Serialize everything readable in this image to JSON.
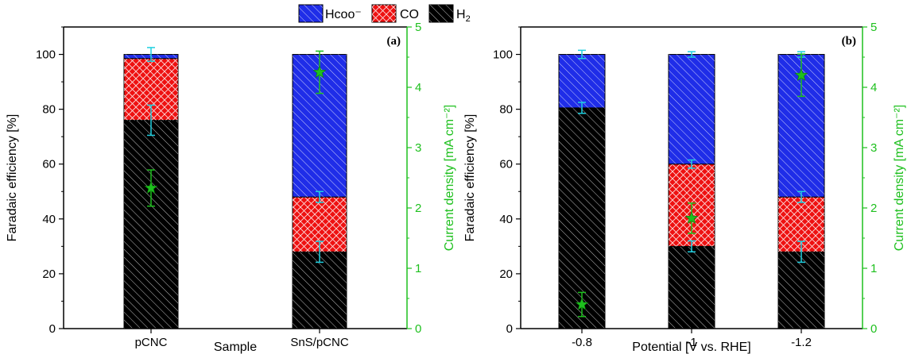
{
  "legend": {
    "items": [
      {
        "label": "Hcoo⁻",
        "color": "#1f2de8",
        "hatch": true
      },
      {
        "label": "CO",
        "color": "#ee1111",
        "hatch": false
      },
      {
        "label": "H",
        "sub": "2",
        "color": "#000000",
        "hatch": true
      }
    ]
  },
  "colors": {
    "hcoo": "#1f2de8",
    "co": "#ee1111",
    "h2": "#000000",
    "current": "#1ec01e",
    "err": "#1fd0e0"
  },
  "chart_data": [
    {
      "type": "bar",
      "stacked": true,
      "tag": "(a)",
      "xlabel": "Sample",
      "ylabel": "Faradaic efficiency [%]",
      "y2label": "Current density [mA cm⁻²]",
      "categories": [
        "pCNC",
        "SnS/pCNC"
      ],
      "ylim": [
        0,
        110
      ],
      "y2lim": [
        0,
        5
      ],
      "yticks": [
        0,
        20,
        40,
        60,
        80,
        100
      ],
      "y2ticks": [
        0,
        1,
        2,
        3,
        4,
        5
      ],
      "series": [
        {
          "name": "H₂",
          "values": [
            76,
            28
          ],
          "err": [
            5.5,
            3.8
          ]
        },
        {
          "name": "CO",
          "values": [
            22.5,
            20
          ],
          "err": [
            0,
            2
          ]
        },
        {
          "name": "Hcoo⁻",
          "values": [
            1.5,
            52
          ],
          "err": [
            2.5,
            0
          ]
        }
      ],
      "current_density": {
        "values": [
          2.33,
          4.25
        ],
        "err": [
          0.3,
          0.35
        ]
      }
    },
    {
      "type": "bar",
      "stacked": true,
      "tag": "(b)",
      "xlabel": "Potential [V vs. RHE]",
      "ylabel": "Faradaic efficiency [%]",
      "y2label": "Current density [mA cm⁻²]",
      "categories": [
        "-0.8",
        "-1",
        "-1.2"
      ],
      "ylim": [
        0,
        110
      ],
      "y2lim": [
        0,
        5
      ],
      "yticks": [
        0,
        20,
        40,
        60,
        80,
        100
      ],
      "y2ticks": [
        0,
        1,
        2,
        3,
        4,
        5
      ],
      "series": [
        {
          "name": "H₂",
          "values": [
            80.5,
            30,
            28
          ],
          "err": [
            2,
            2,
            3.8
          ]
        },
        {
          "name": "CO",
          "values": [
            0,
            30,
            20
          ],
          "err": [
            0,
            1.5,
            2
          ]
        },
        {
          "name": "Hcoo⁻",
          "values": [
            19.5,
            40,
            52
          ],
          "err": [
            1.5,
            1,
            1
          ]
        }
      ],
      "current_density": {
        "values": [
          0.4,
          1.83,
          4.2
        ],
        "err": [
          0.2,
          0.25,
          0.35
        ]
      }
    }
  ]
}
